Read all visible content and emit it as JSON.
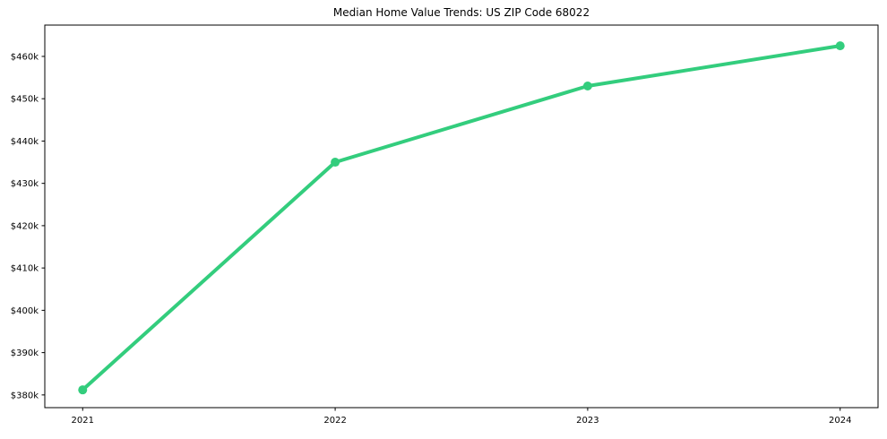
{
  "chart_data": {
    "type": "line",
    "title": "Median Home Value Trends: US ZIP Code 68022",
    "xlabel": "",
    "ylabel": "",
    "x": [
      2021,
      2022,
      2023,
      2024
    ],
    "series": [
      {
        "name": "Median Home Value",
        "values": [
          381.2,
          435.0,
          453.0,
          462.5
        ]
      }
    ],
    "values_unit": "$k",
    "x_tick_labels": [
      "2021",
      "2022",
      "2023",
      "2024"
    ],
    "y_tick_values": [
      380,
      390,
      400,
      410,
      420,
      430,
      440,
      450,
      460
    ],
    "y_tick_labels": [
      "$380k",
      "$390k",
      "$400k",
      "$410k",
      "$420k",
      "$430k",
      "$440k",
      "$450k",
      "$460k"
    ],
    "xlim": [
      2020.85,
      2024.15
    ],
    "ylim": [
      377.0,
      467.4
    ],
    "grid": false,
    "legend": "none",
    "line_color": "#33cd7d",
    "marker": "circle",
    "axis_color": "#000000",
    "background_color": "#ffffff"
  }
}
